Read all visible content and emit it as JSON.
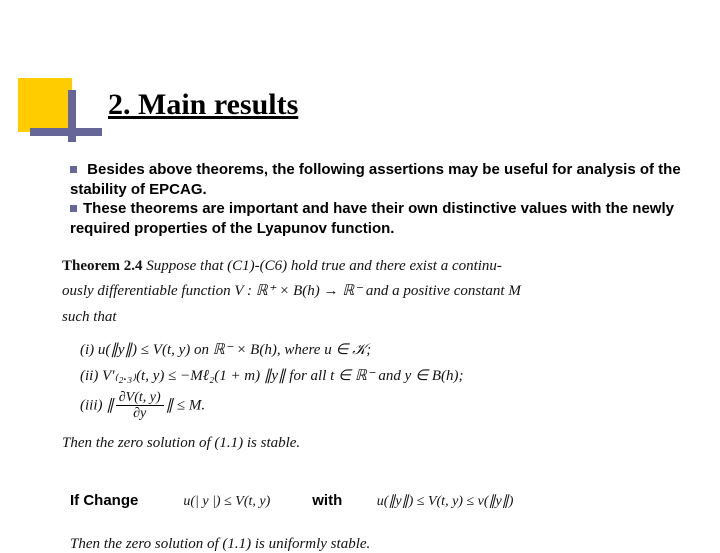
{
  "colors": {
    "accent_yellow": "#ffcc00",
    "accent_purple": "#666699",
    "background": "#ffffff",
    "text": "#000000",
    "math_text": "#111111"
  },
  "typography": {
    "heading_family": "Times New Roman",
    "heading_size_pt": 22,
    "heading_weight": "bold",
    "body_family": "Arial",
    "body_size_pt": 11,
    "body_weight": "bold",
    "math_family": "Times New Roman",
    "math_size_pt": 11
  },
  "heading": "2. Main results",
  "bullets": [
    "Besides above theorems, the following assertions may be useful for analysis of the stability of EPCAG.",
    "These theorems are important and have their own distinctive values with the newly required properties of the Lyapunov function."
  ],
  "theorem": {
    "label": "Theorem 2.4",
    "intro_1": "Suppose that (C1)-(C6) hold true and there exist a continu-",
    "intro_2": "ously differentiable function V : ℝ⁺ × B(h) → ℝ⁻ and a positive constant M",
    "intro_3": "such that",
    "cond_i": "(i)  u(∥y∥) ≤ V(t, y) on ℝ⁻ × B(h), where u ∈ 𝒦;",
    "cond_ii": "(ii)  V′₍₂.₃₎(t, y) ≤ −Mℓ₂(1 + m) ∥y∥ for all t ∈ ℝ⁻ and y ∈ B(h);",
    "cond_iii_prefix": "(iii)  ∥",
    "cond_iii_num": "∂V(t, y)",
    "cond_iii_den": "∂y",
    "cond_iii_suffix": "∥ ≤ M.",
    "stable": "Then the zero solution of (1.1) is stable."
  },
  "footer": {
    "if_change": "If Change",
    "formula1": "u(| y |) ≤ V(t, y)",
    "with": "with",
    "formula2": "u(∥y∥) ≤ V(t, y) ≤ v(∥y∥)"
  },
  "uniform": "Then the zero solution of (1.1) is uniformly stable."
}
